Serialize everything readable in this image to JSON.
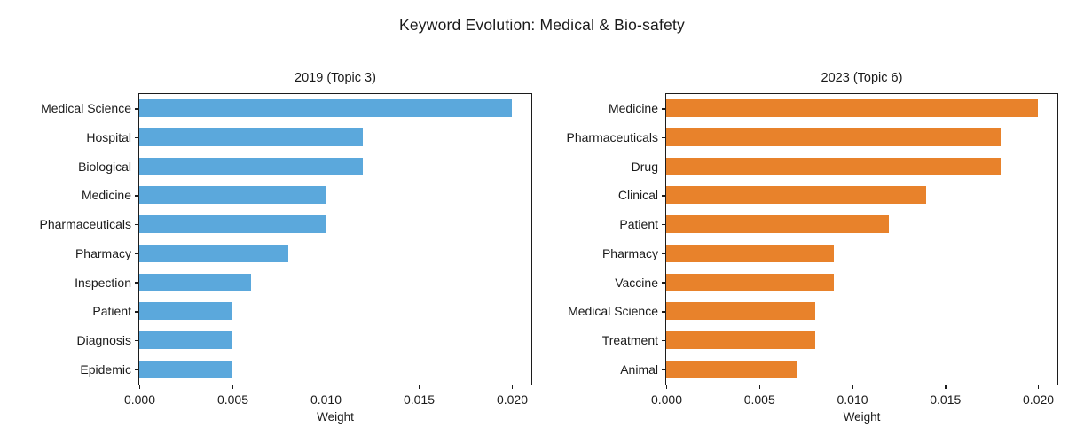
{
  "figure": {
    "title": "Keyword Evolution: Medical & Bio-safety",
    "background_color": "#ffffff",
    "axis_color": "#1c1c1c",
    "text_color": "#1a1a1a"
  },
  "chart_data": [
    {
      "type": "bar",
      "orientation": "horizontal",
      "title": "2019 (Topic 3)",
      "categories": [
        "Medical Science",
        "Hospital",
        "Biological",
        "Medicine",
        "Pharmaceuticals",
        "Pharmacy",
        "Inspection",
        "Patient",
        "Diagnosis",
        "Epidemic"
      ],
      "values": [
        0.02,
        0.012,
        0.012,
        0.01,
        0.01,
        0.008,
        0.006,
        0.005,
        0.005,
        0.005
      ],
      "bar_color": "#5BA8DC",
      "xlabel": "Weight",
      "xlim": [
        0,
        0.021
      ],
      "xticks": [
        0,
        0.005,
        0.01,
        0.015,
        0.02
      ],
      "xtick_labels": [
        "0.000",
        "0.005",
        "0.010",
        "0.015",
        "0.020"
      ],
      "grid": false,
      "legend": null
    },
    {
      "type": "bar",
      "orientation": "horizontal",
      "title": "2023 (Topic 6)",
      "categories": [
        "Medicine",
        "Pharmaceuticals",
        "Drug",
        "Clinical",
        "Patient",
        "Pharmacy",
        "Vaccine",
        "Medical Science",
        "Treatment",
        "Animal"
      ],
      "values": [
        0.02,
        0.018,
        0.018,
        0.014,
        0.012,
        0.009,
        0.009,
        0.008,
        0.008,
        0.007
      ],
      "bar_color": "#E8822B",
      "xlabel": "Weight",
      "xlim": [
        0,
        0.021
      ],
      "xticks": [
        0,
        0.005,
        0.01,
        0.015,
        0.02
      ],
      "xtick_labels": [
        "0.000",
        "0.005",
        "0.010",
        "0.015",
        "0.020"
      ],
      "grid": false,
      "legend": null
    }
  ]
}
